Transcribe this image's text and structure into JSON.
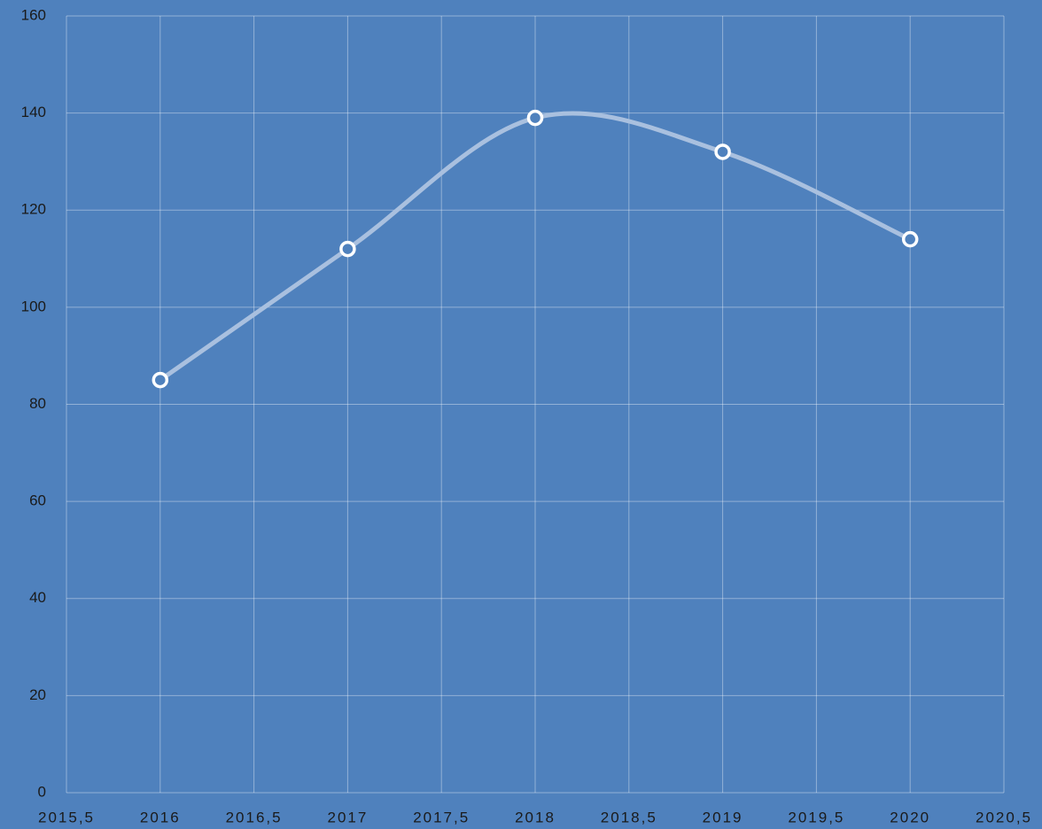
{
  "chart_data": {
    "type": "line",
    "x": [
      2016,
      2017,
      2018,
      2019,
      2020
    ],
    "series": [
      {
        "values": [
          85,
          112,
          139,
          132,
          114
        ],
        "color": "#a9c0df"
      }
    ],
    "smooth": true,
    "xlim": [
      2015.5,
      2020.5
    ],
    "xticks": [
      {
        "value": 2015.5,
        "label": "2015,5"
      },
      2016,
      {
        "value": 2016.5,
        "label": "2016,5"
      },
      2017,
      {
        "value": 2017.5,
        "label": "2017,5"
      },
      2018,
      {
        "value": 2018.5,
        "label": "2018,5"
      },
      2019,
      {
        "value": 2019.5,
        "label": "2019,5"
      },
      2020,
      {
        "value": 2020.5,
        "label": "2020,5"
      }
    ],
    "ylim": [
      0,
      160
    ],
    "yticks": [
      0,
      20,
      40,
      60,
      80,
      100,
      120,
      140,
      160
    ],
    "grid": true
  }
}
